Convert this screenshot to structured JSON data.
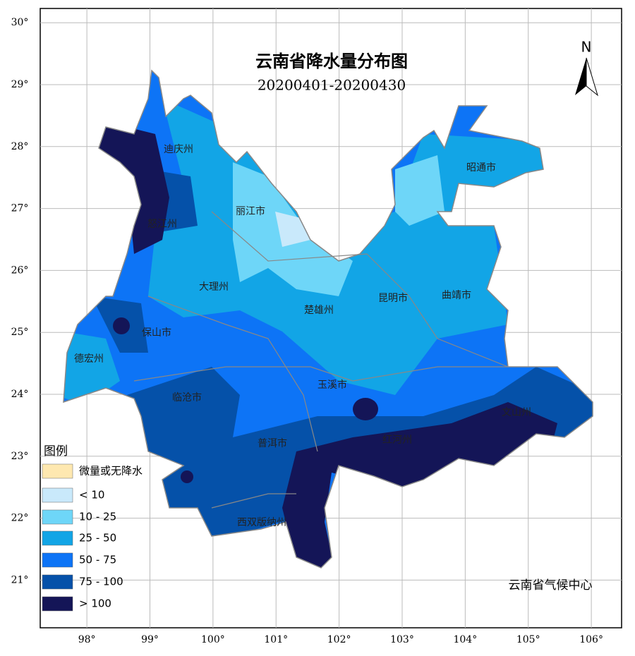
{
  "title": "云南省降水量分布图",
  "subtitle": "20200401-20200430",
  "north": "N",
  "credit": "云南省气候中心",
  "map": {
    "xlim": [
      97.26,
      106.48
    ],
    "ylim": [
      20.23,
      30.23
    ],
    "grid": true,
    "xticks": [
      {
        "value": 98,
        "label": "98°"
      },
      {
        "value": 99,
        "label": "99°"
      },
      {
        "value": 100,
        "label": "100°"
      },
      {
        "value": 101,
        "label": "101°"
      },
      {
        "value": 102,
        "label": "102°"
      },
      {
        "value": 103,
        "label": "103°"
      },
      {
        "value": 104,
        "label": "104°"
      },
      {
        "value": 105,
        "label": "105°"
      },
      {
        "value": 106,
        "label": "106°"
      }
    ],
    "yticks": [
      {
        "value": 21,
        "label": "21°"
      },
      {
        "value": 22,
        "label": "22°"
      },
      {
        "value": 23,
        "label": "23°"
      },
      {
        "value": 24,
        "label": "24°"
      },
      {
        "value": 25,
        "label": "25°"
      },
      {
        "value": 26,
        "label": "26°"
      },
      {
        "value": 27,
        "label": "27°"
      },
      {
        "value": 28,
        "label": "28°"
      },
      {
        "value": 29,
        "label": "29°"
      },
      {
        "value": 30,
        "label": "30°"
      }
    ]
  },
  "cities": [
    "迪庆州",
    "怒江州",
    "丽江市",
    "昭通市",
    "大理州",
    "楚雄州",
    "昆明市",
    "曲靖市",
    "保山市",
    "德宏州",
    "玉溪市",
    "临沧市",
    "普洱市",
    "红河州",
    "文山州",
    "西双版纳州"
  ],
  "legend": {
    "title": "图例",
    "items": [
      {
        "label": "微量或无降水",
        "color": "#fee8b0"
      },
      {
        "label": "< 10",
        "color": "#c9e9fb"
      },
      {
        "label": "10 - 25",
        "color": "#6ed6f8"
      },
      {
        "label": "25 - 50",
        "color": "#12a5e6"
      },
      {
        "label": "50 - 75",
        "color": "#0d74f6"
      },
      {
        "label": "75 - 100",
        "color": "#0551a9"
      },
      {
        "label": "> 100",
        "color": "#141557"
      }
    ]
  }
}
